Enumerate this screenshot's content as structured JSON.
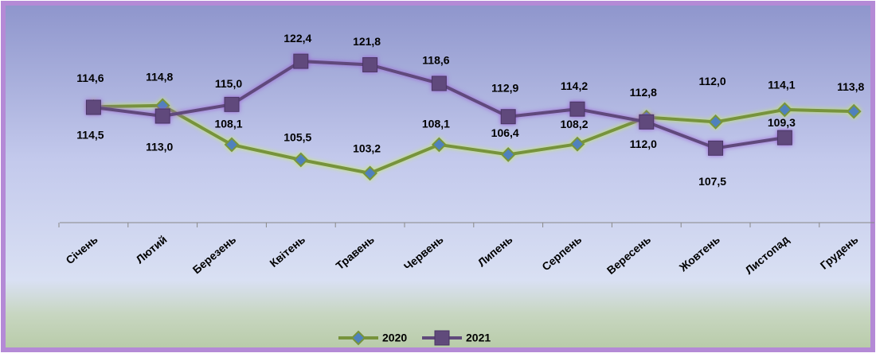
{
  "chart_data": {
    "type": "line",
    "categories": [
      "Січень",
      "Лютий",
      "Березень",
      "Квітень",
      "Травень",
      "Червень",
      "Липень",
      "Серпень",
      "Вересень",
      "Жовтень",
      "Листопад",
      "Грудень"
    ],
    "series": [
      {
        "name": "2020",
        "color": "#77933c",
        "marker": "diamond",
        "values": [
          114.6,
          114.8,
          108.1,
          105.5,
          103.2,
          108.1,
          106.4,
          108.2,
          112.8,
          112.0,
          114.1,
          113.8
        ],
        "value_labels": [
          "114,6",
          "114,8",
          "108,1",
          "105,5",
          "103,2",
          "108,1",
          "106,4",
          "108,2",
          "112,8",
          "112,0",
          "114,1",
          "113,8"
        ]
      },
      {
        "name": "2021",
        "color": "#604a7b",
        "marker": "square",
        "values": [
          114.5,
          113.0,
          115.0,
          122.4,
          121.8,
          118.6,
          112.9,
          114.2,
          112.0,
          107.5,
          109.3,
          null
        ],
        "value_labels": [
          "114,5",
          "113,0",
          "115,0",
          "122,4",
          "121,8",
          "118,6",
          "112,9",
          "114,2",
          "112,0",
          "107,5",
          "109,3",
          null
        ]
      }
    ],
    "ylim": [
      95,
      125
    ],
    "legend": "bottom"
  }
}
